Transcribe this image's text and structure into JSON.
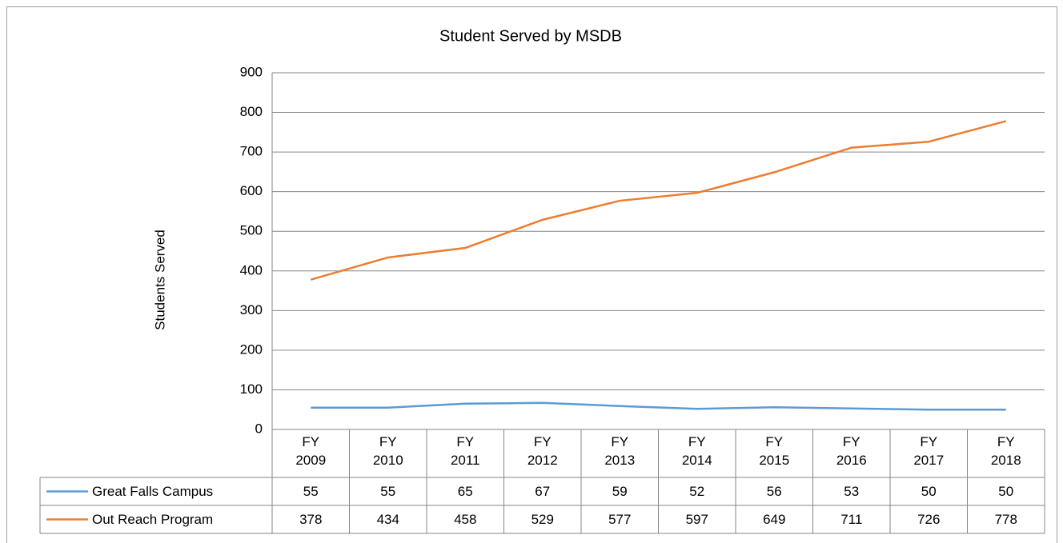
{
  "chart_data": {
    "type": "line",
    "title": "Student Served by MSDB",
    "y_label": "Students Served",
    "categories": [
      "FY 2009",
      "FY 2010",
      "FY 2011",
      "FY 2012",
      "FY 2013",
      "FY 2014",
      "FY 2015",
      "FY 2016",
      "FY 2017",
      "FY 2018"
    ],
    "series": [
      {
        "name": "Great Falls Campus",
        "color": "#5b9bd5",
        "values": [
          55,
          55,
          65,
          67,
          59,
          52,
          56,
          53,
          50,
          50
        ]
      },
      {
        "name": "Out Reach Program",
        "color": "#ed7d31",
        "values": [
          378,
          434,
          458,
          529,
          577,
          597,
          649,
          711,
          726,
          778
        ]
      }
    ],
    "ylim": [
      0,
      900
    ],
    "yticks": [
      0,
      100,
      200,
      300,
      400,
      500,
      600,
      700,
      800,
      900
    ],
    "grid": true,
    "data_table": true
  }
}
